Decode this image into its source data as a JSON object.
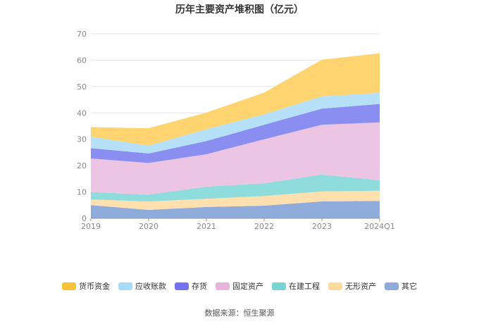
{
  "chart_data": {
    "type": "area",
    "stacked": true,
    "title": "历年主要资产堆积图（亿元）",
    "categories": [
      "2019",
      "2020",
      "2021",
      "2022",
      "2023",
      "2024Q1"
    ],
    "ylim": [
      0,
      70
    ],
    "yticks": [
      0,
      10,
      20,
      30,
      40,
      50,
      60,
      70
    ],
    "grid": true,
    "legend_position": "bottom",
    "series": [
      {
        "name": "其它",
        "color": "#8fabdb",
        "values": [
          5.0,
          3.2,
          4.3,
          4.8,
          6.4,
          6.6
        ]
      },
      {
        "name": "无形资产",
        "color": "#fde0ad",
        "values": [
          2.2,
          3.2,
          3.1,
          3.7,
          3.8,
          3.9
        ]
      },
      {
        "name": "在建工程",
        "color": "#8fdcdc",
        "values": [
          2.8,
          2.6,
          4.6,
          4.8,
          6.4,
          4.0
        ]
      },
      {
        "name": "固定资产",
        "color": "#edc5e4",
        "values": [
          12.7,
          12.0,
          12.3,
          16.7,
          18.9,
          21.9
        ]
      },
      {
        "name": "存货",
        "color": "#8a8ef0",
        "values": [
          3.9,
          3.6,
          5.0,
          5.5,
          6.1,
          7.0
        ]
      },
      {
        "name": "应收账款",
        "color": "#b6e0f7",
        "values": [
          4.4,
          3.0,
          4.5,
          4.0,
          4.7,
          4.2
        ]
      },
      {
        "name": "货币资金",
        "color": "#fed470",
        "values": [
          3.6,
          6.6,
          6.3,
          8.2,
          13.9,
          15.0
        ]
      }
    ],
    "legend_order": [
      "货币资金",
      "应收账款",
      "存货",
      "固定资产",
      "在建工程",
      "无形资产",
      "其它"
    ],
    "legend_colors": {
      "货币资金": "#f7c235",
      "应收账款": "#a7dcf6",
      "存货": "#7373ee",
      "固定资产": "#e8b4dc",
      "在建工程": "#78d3d3",
      "无形资产": "#fcd99c",
      "其它": "#8fabdb"
    }
  },
  "source": "数据来源：恒生聚源"
}
